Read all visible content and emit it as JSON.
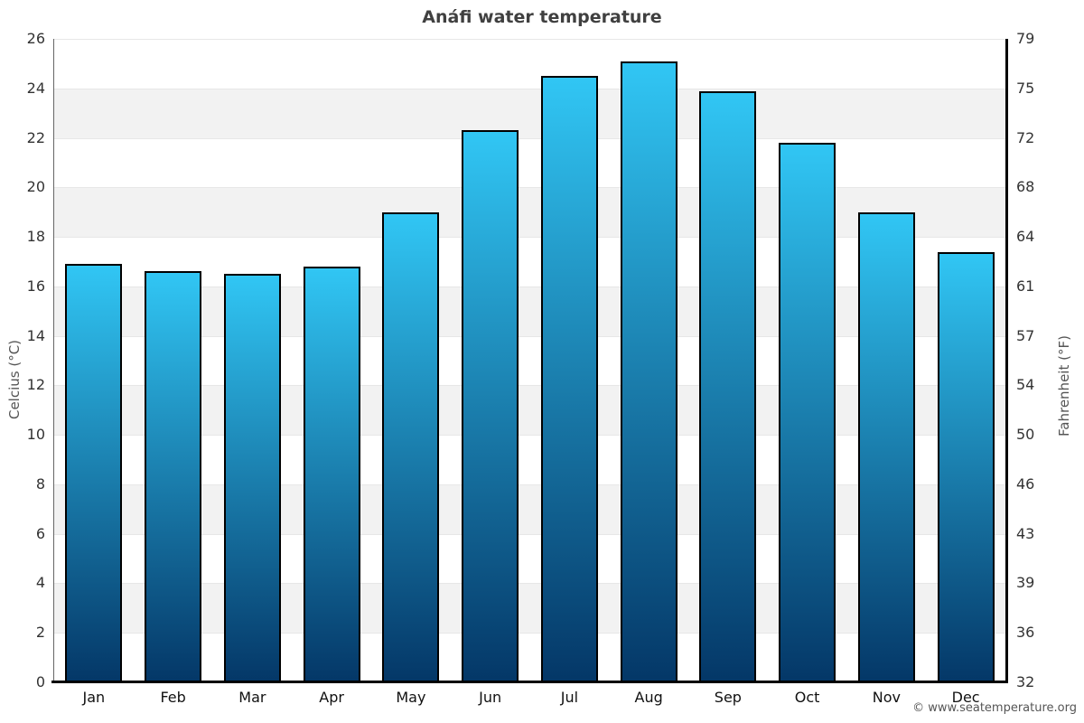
{
  "page": {
    "title": "Anáfi water temperature",
    "footer": "© www.seatemperature.org"
  },
  "chart_data": {
    "type": "bar",
    "title": "Anáfi water temperature",
    "categories": [
      "Jan",
      "Feb",
      "Mar",
      "Apr",
      "May",
      "Jun",
      "Jul",
      "Aug",
      "Sep",
      "Oct",
      "Nov",
      "Dec"
    ],
    "values": [
      16.9,
      16.6,
      16.5,
      16.8,
      19.0,
      22.3,
      24.5,
      25.1,
      23.9,
      21.8,
      19.0,
      17.4
    ],
    "value_unit": "°C",
    "ylabel_left": "Celcius (°C)",
    "ylabel_right": "Fahrenheit (°F)",
    "ylim_left": [
      0,
      26
    ],
    "yticks_left": [
      0,
      2,
      4,
      6,
      8,
      10,
      12,
      14,
      16,
      18,
      20,
      22,
      24,
      26
    ],
    "yticks_right": [
      32,
      36,
      39,
      43,
      46,
      50,
      54,
      57,
      61,
      64,
      68,
      72,
      75,
      79
    ],
    "grid": "alternating horizontal bands every 2°C (white / light gray), thin gridlines at each tick",
    "legend": "none",
    "colors": {
      "bar_gradient_top": "#31c6f4",
      "bar_gradient_bottom": "#043767",
      "bar_border": "#000000",
      "band_white": "#ffffff",
      "band_gray": "#f2f2f2",
      "gridline": "#e7e7e7",
      "title": "#404040",
      "tick_label": "#333333",
      "axis_label": "#555555",
      "footer": "#555555"
    }
  }
}
